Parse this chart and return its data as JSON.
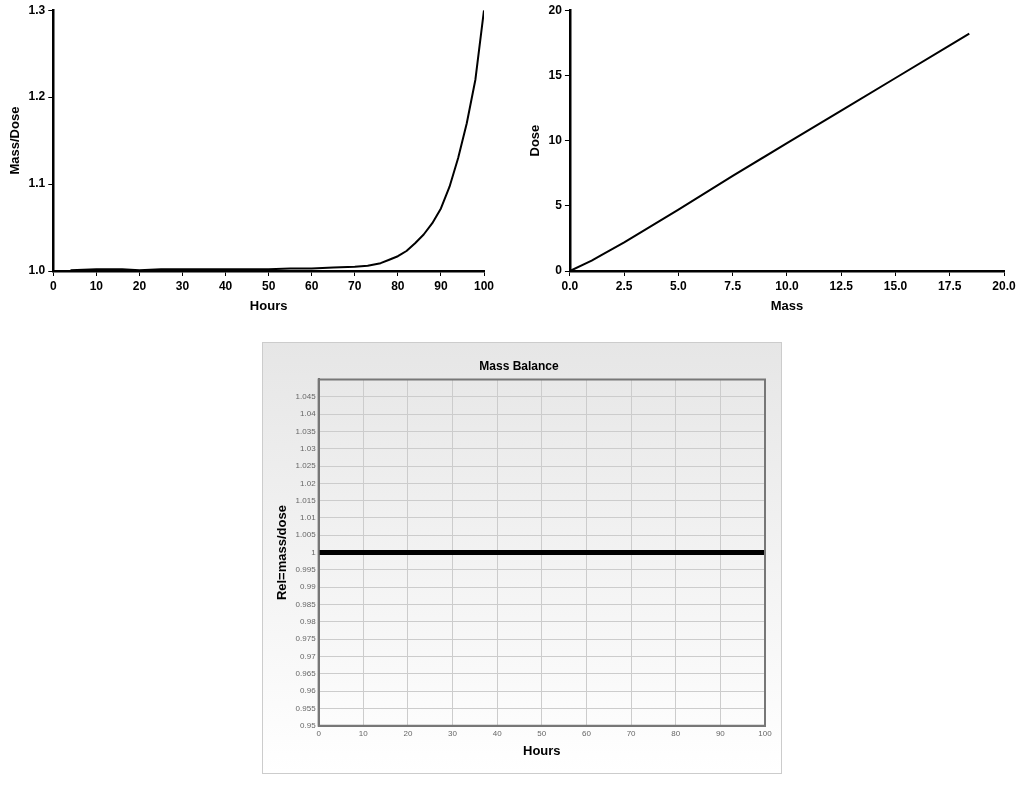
{
  "chart_data": [
    {
      "type": "line",
      "xlabel": "Hours",
      "ylabel": "Mass/Dose",
      "xlim": [
        0,
        100
      ],
      "xticks": [
        0,
        10,
        20,
        30,
        40,
        50,
        60,
        70,
        80,
        90,
        100
      ],
      "ylim": [
        1,
        1.3
      ],
      "yticks": [
        {
          "value": 1,
          "label": "1.0"
        },
        1.1,
        1.2,
        1.3
      ],
      "grid": false,
      "series": [
        {
          "color": "#000000",
          "x": [
            4,
            10,
            16,
            20,
            25,
            30,
            40,
            50,
            55,
            60,
            65,
            70,
            73,
            76,
            78,
            80,
            82,
            84,
            86,
            88,
            90,
            92,
            94,
            96,
            98,
            100
          ],
          "values": [
            1.001,
            1.002,
            1.002,
            1.001,
            1.002,
            1.002,
            1.002,
            1.002,
            1.003,
            1.003,
            1.004,
            1.005,
            1.006,
            1.009,
            1.013,
            1.017,
            1.023,
            1.032,
            1.042,
            1.055,
            1.072,
            1.097,
            1.13,
            1.17,
            1.22,
            1.3
          ]
        }
      ]
    },
    {
      "type": "line",
      "xlabel": "Mass",
      "ylabel": "Dose",
      "xlim": [
        0,
        20
      ],
      "xticks": [
        {
          "value": 0,
          "label": "0.0"
        },
        2.5,
        {
          "value": 5,
          "label": "5.0"
        },
        7.5,
        {
          "value": 10,
          "label": "10.0"
        },
        12.5,
        {
          "value": 15,
          "label": "15.0"
        },
        17.5,
        {
          "value": 20,
          "label": "20.0"
        }
      ],
      "ylim": [
        0,
        20
      ],
      "yticks": [
        0,
        5,
        10,
        15,
        20
      ],
      "grid": false,
      "series": [
        {
          "color": "#000000",
          "x": [
            0,
            1,
            2.5,
            5,
            7.5,
            10,
            12.5,
            15,
            17.5,
            18.4
          ],
          "values": [
            0,
            0.8,
            2.2,
            4.7,
            7.3,
            9.8,
            12.3,
            14.8,
            17.3,
            18.2
          ]
        }
      ]
    },
    {
      "type": "line",
      "title": "Mass Balance",
      "xlabel": "Hours",
      "ylabel": "Rel=mass/dose",
      "xlim": [
        0,
        100
      ],
      "xticks": [
        0,
        10,
        20,
        30,
        40,
        50,
        60,
        70,
        80,
        90,
        100
      ],
      "ylim": [
        0.95,
        1.05
      ],
      "yticks": [
        0.95,
        0.955,
        0.96,
        0.965,
        0.97,
        0.975,
        0.98,
        0.985,
        0.99,
        0.995,
        1,
        1.005,
        1.01,
        1.015,
        1.02,
        1.025,
        1.03,
        1.035,
        1.04,
        1.045
      ],
      "grid": true,
      "series": [
        {
          "color": "#000000",
          "x": [
            0,
            100
          ],
          "values": [
            1,
            1
          ]
        }
      ]
    }
  ]
}
